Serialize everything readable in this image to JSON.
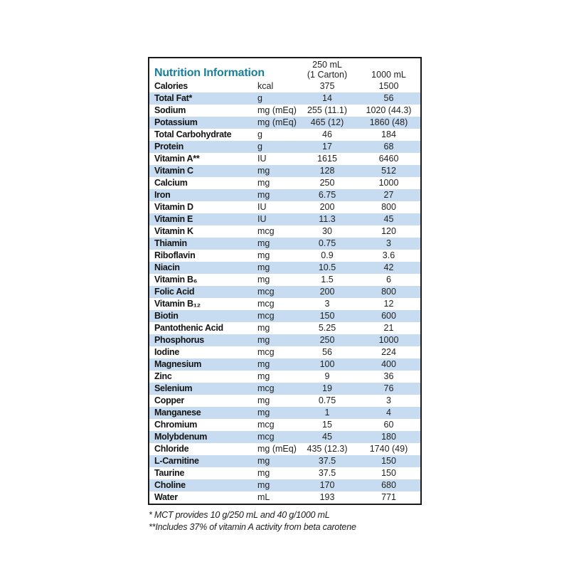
{
  "title": "Nutrition Information",
  "colors": {
    "accent": "#17809c",
    "stripe": "#c7dcf0",
    "border": "#1a1a1a"
  },
  "table": {
    "headers": {
      "col_250_line1": "250 mL",
      "col_250_line2": "(1 Carton)",
      "col_1000": "1000 mL"
    },
    "rows": [
      {
        "name": "Calories",
        "unit": "kcal",
        "v250": "375",
        "v1000": "1500"
      },
      {
        "name": "Total Fat*",
        "unit": "g",
        "v250": "14",
        "v1000": "56"
      },
      {
        "name": "Sodium",
        "unit": "mg (mEq)",
        "v250": "255 (11.1)",
        "v1000": "1020 (44.3)"
      },
      {
        "name": "Potassium",
        "unit": "mg (mEq)",
        "v250": "465 (12)",
        "v1000": "1860 (48)"
      },
      {
        "name": "Total Carbohydrate",
        "unit": "g",
        "v250": "46",
        "v1000": "184"
      },
      {
        "name": "Protein",
        "unit": "g",
        "v250": "17",
        "v1000": "68"
      },
      {
        "name": "Vitamin A**",
        "unit": "IU",
        "v250": "1615",
        "v1000": "6460"
      },
      {
        "name": "Vitamin C",
        "unit": "mg",
        "v250": "128",
        "v1000": "512"
      },
      {
        "name": "Calcium",
        "unit": "mg",
        "v250": "250",
        "v1000": "1000"
      },
      {
        "name": "Iron",
        "unit": "mg",
        "v250": "6.75",
        "v1000": "27"
      },
      {
        "name": "Vitamin D",
        "unit": "IU",
        "v250": "200",
        "v1000": "800"
      },
      {
        "name": "Vitamin E",
        "unit": "IU",
        "v250": "11.3",
        "v1000": "45"
      },
      {
        "name": "Vitamin K",
        "unit": "mcg",
        "v250": "30",
        "v1000": "120"
      },
      {
        "name": "Thiamin",
        "unit": "mg",
        "v250": "0.75",
        "v1000": "3"
      },
      {
        "name": "Riboflavin",
        "unit": "mg",
        "v250": "0.9",
        "v1000": "3.6"
      },
      {
        "name": "Niacin",
        "unit": "mg",
        "v250": "10.5",
        "v1000": "42"
      },
      {
        "name": "Vitamin B₆",
        "unit": "mg",
        "v250": "1.5",
        "v1000": "6"
      },
      {
        "name": "Folic Acid",
        "unit": "mcg",
        "v250": "200",
        "v1000": "800"
      },
      {
        "name": "Vitamin B₁₂",
        "unit": "mcg",
        "v250": "3",
        "v1000": "12"
      },
      {
        "name": "Biotin",
        "unit": "mcg",
        "v250": "150",
        "v1000": "600"
      },
      {
        "name": "Pantothenic Acid",
        "unit": "mg",
        "v250": "5.25",
        "v1000": "21"
      },
      {
        "name": "Phosphorus",
        "unit": "mg",
        "v250": "250",
        "v1000": "1000"
      },
      {
        "name": "Iodine",
        "unit": "mcg",
        "v250": "56",
        "v1000": "224"
      },
      {
        "name": "Magnesium",
        "unit": "mg",
        "v250": "100",
        "v1000": "400"
      },
      {
        "name": "Zinc",
        "unit": "mg",
        "v250": "9",
        "v1000": "36"
      },
      {
        "name": "Selenium",
        "unit": "mcg",
        "v250": "19",
        "v1000": "76"
      },
      {
        "name": "Copper",
        "unit": "mg",
        "v250": "0.75",
        "v1000": "3"
      },
      {
        "name": "Manganese",
        "unit": "mg",
        "v250": "1",
        "v1000": "4"
      },
      {
        "name": "Chromium",
        "unit": "mcg",
        "v250": "15",
        "v1000": "60"
      },
      {
        "name": "Molybdenum",
        "unit": "mcg",
        "v250": "45",
        "v1000": "180"
      },
      {
        "name": "Chloride",
        "unit": "mg (mEq)",
        "v250": "435 (12.3)",
        "v1000": "1740 (49)"
      },
      {
        "name": "L-Carnitine",
        "unit": "mg",
        "v250": "37.5",
        "v1000": "150"
      },
      {
        "name": "Taurine",
        "unit": "mg",
        "v250": "37.5",
        "v1000": "150"
      },
      {
        "name": "Choline",
        "unit": "mg",
        "v250": "170",
        "v1000": "680"
      },
      {
        "name": "Water",
        "unit": "mL",
        "v250": "193",
        "v1000": "771"
      }
    ]
  },
  "footnotes": [
    "* MCT provides 10 g/250 mL and 40 g/1000 mL",
    "**Includes 37% of vitamin A activity from beta carotene"
  ]
}
